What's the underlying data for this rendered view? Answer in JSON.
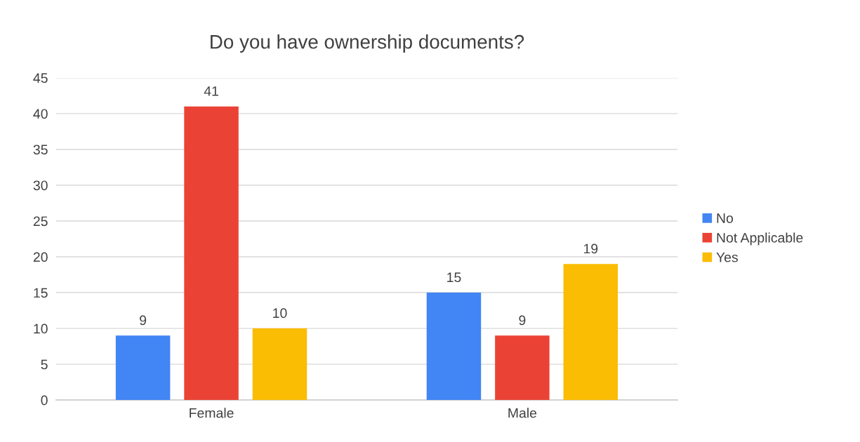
{
  "chart_data": {
    "type": "bar",
    "title": "Do you have ownership documents?",
    "categories": [
      "Female",
      "Male"
    ],
    "series": [
      {
        "name": "No",
        "color": "#4285f4",
        "values": [
          9,
          15
        ]
      },
      {
        "name": "Not Applicable",
        "color": "#ea4335",
        "values": [
          41,
          9
        ]
      },
      {
        "name": "Yes",
        "color": "#fbbc04",
        "values": [
          10,
          19
        ]
      }
    ],
    "ylim": [
      0,
      45
    ],
    "yticks": [
      0,
      5,
      10,
      15,
      20,
      25,
      30,
      35,
      40,
      45
    ],
    "grid": "y",
    "legend": "right",
    "data_labels": true
  }
}
